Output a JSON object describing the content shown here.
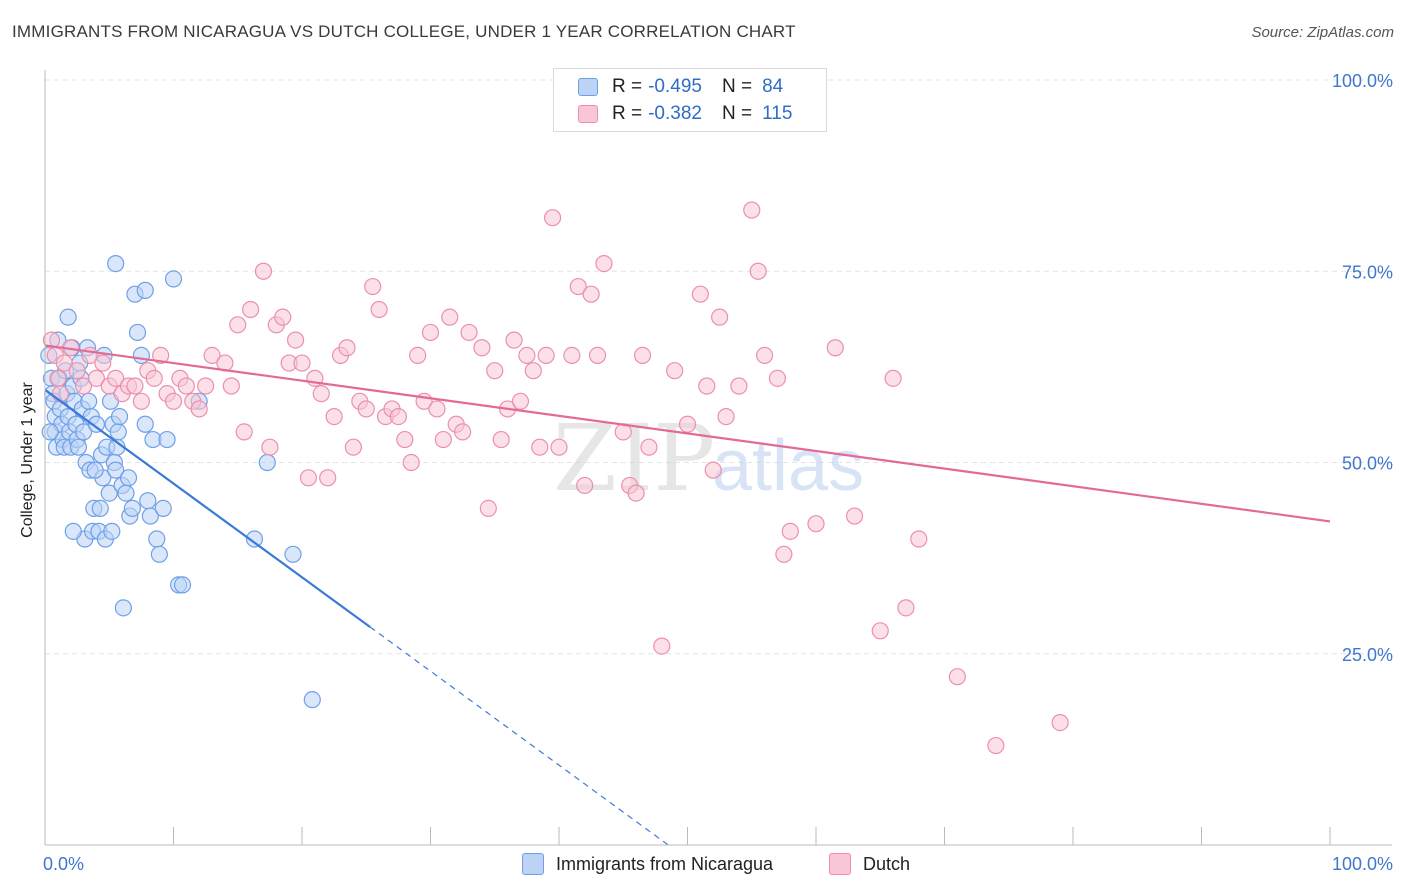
{
  "title": "IMMIGRANTS FROM NICARAGUA VS DUTCH COLLEGE, UNDER 1 YEAR CORRELATION CHART",
  "source": "Source: ZipAtlas.com",
  "watermark": {
    "zip": "ZIP",
    "atlas": "atlas"
  },
  "stats": [
    {
      "r_label": "R = ",
      "r_value": "-0.495",
      "n_label": "N = ",
      "n_value": "84",
      "color": "#6ea0e8",
      "fill": "#bcd3f5"
    },
    {
      "r_label": "R = ",
      "r_value": "-0.382",
      "n_label": "N = ",
      "n_value": "115",
      "color": "#ec8fae",
      "fill": "#f8c6d6"
    }
  ],
  "legend": [
    {
      "label": "Immigrants from Nicaragua",
      "color": "#6ea0e8",
      "fill": "#bcd3f5"
    },
    {
      "label": "Dutch",
      "color": "#ec8fae",
      "fill": "#f8c6d6"
    }
  ],
  "chart_data": {
    "type": "scatter",
    "title": "IMMIGRANTS FROM NICARAGUA VS DUTCH COLLEGE, UNDER 1 YEAR CORRELATION CHART",
    "xlabel": "",
    "ylabel": "College, Under 1 year",
    "xlim": [
      0,
      100
    ],
    "ylim": [
      0,
      100
    ],
    "x_tick_labels": [
      "0.0%",
      "100.0%"
    ],
    "y_tick_labels": [
      "25.0%",
      "50.0%",
      "75.0%",
      "100.0%"
    ],
    "y_ticks": [
      25,
      50,
      75,
      100
    ],
    "grid": true,
    "series": [
      {
        "name": "Immigrants from Nicaragua",
        "color": "#3a7ad8",
        "point_color": "#6ea0e8",
        "trend": {
          "x": [
            0,
            25.3
          ],
          "y": [
            59.5,
            28.5
          ],
          "extrapolated_to": [
            48.5,
            0
          ]
        },
        "points": [
          [
            0.3,
            64
          ],
          [
            0.5,
            61
          ],
          [
            0.6,
            59
          ],
          [
            0.7,
            58
          ],
          [
            0.8,
            56
          ],
          [
            0.8,
            54
          ],
          [
            0.9,
            52
          ],
          [
            1,
            66
          ],
          [
            1.1,
            61
          ],
          [
            1.2,
            57
          ],
          [
            1.3,
            55
          ],
          [
            1.4,
            53
          ],
          [
            1.5,
            52
          ],
          [
            1.6,
            62
          ],
          [
            1.7,
            59
          ],
          [
            1.8,
            56
          ],
          [
            1.9,
            54
          ],
          [
            2,
            52
          ],
          [
            2.1,
            65
          ],
          [
            2.2,
            60
          ],
          [
            2.3,
            58
          ],
          [
            2.4,
            55
          ],
          [
            2.5,
            53
          ],
          [
            2.6,
            52
          ],
          [
            2.7,
            63
          ],
          [
            2.8,
            61
          ],
          [
            2.9,
            57
          ],
          [
            3,
            54
          ],
          [
            3.1,
            40
          ],
          [
            3.2,
            50
          ],
          [
            3.3,
            65
          ],
          [
            3.4,
            58
          ],
          [
            3.5,
            49
          ],
          [
            3.6,
            56
          ],
          [
            3.7,
            41
          ],
          [
            3.8,
            44
          ],
          [
            4,
            55
          ],
          [
            4.2,
            41
          ],
          [
            4.3,
            44
          ],
          [
            4.4,
            51
          ],
          [
            4.5,
            48
          ],
          [
            4.6,
            64
          ],
          [
            4.7,
            40
          ],
          [
            4.8,
            52
          ],
          [
            5,
            46
          ],
          [
            5.1,
            58
          ],
          [
            5.2,
            41
          ],
          [
            5.3,
            55
          ],
          [
            5.4,
            50
          ],
          [
            5.5,
            49
          ],
          [
            5.6,
            52
          ],
          [
            5.7,
            54
          ],
          [
            5.8,
            56
          ],
          [
            6,
            47
          ],
          [
            6.1,
            31
          ],
          [
            6.3,
            46
          ],
          [
            6.5,
            48
          ],
          [
            6.6,
            43
          ],
          [
            7,
            72
          ],
          [
            7.2,
            67
          ],
          [
            7.5,
            64
          ],
          [
            7.8,
            55
          ],
          [
            8,
            45
          ],
          [
            8.2,
            43
          ],
          [
            8.4,
            53
          ],
          [
            8.7,
            40
          ],
          [
            8.9,
            38
          ],
          [
            9.2,
            44
          ],
          [
            9.5,
            53
          ],
          [
            10,
            74
          ],
          [
            10.4,
            34
          ],
          [
            10.7,
            34
          ],
          [
            12,
            58
          ],
          [
            16.3,
            40
          ],
          [
            17.3,
            50
          ],
          [
            19.3,
            38
          ],
          [
            20.8,
            19
          ],
          [
            5.5,
            76
          ],
          [
            7.8,
            72.5
          ],
          [
            1.8,
            69
          ],
          [
            0.4,
            54
          ],
          [
            2.2,
            41
          ],
          [
            3.9,
            49
          ],
          [
            6.8,
            44
          ]
        ]
      },
      {
        "name": "Dutch",
        "color": "#e26a95",
        "point_color": "#ec8fae",
        "trend": {
          "x": [
            0,
            100
          ],
          "y": [
            65.3,
            42.3
          ]
        },
        "points": [
          [
            0.5,
            66
          ],
          [
            0.8,
            64
          ],
          [
            1,
            61
          ],
          [
            1.2,
            59
          ],
          [
            1.5,
            63
          ],
          [
            2,
            65
          ],
          [
            2.5,
            62
          ],
          [
            3,
            60
          ],
          [
            3.5,
            64
          ],
          [
            4,
            61
          ],
          [
            4.5,
            63
          ],
          [
            5,
            60
          ],
          [
            5.5,
            61
          ],
          [
            6,
            59
          ],
          [
            6.5,
            60
          ],
          [
            7,
            60
          ],
          [
            7.5,
            58
          ],
          [
            8,
            62
          ],
          [
            8.5,
            61
          ],
          [
            9,
            64
          ],
          [
            9.5,
            59
          ],
          [
            10,
            58
          ],
          [
            10.5,
            61
          ],
          [
            11,
            60
          ],
          [
            11.5,
            58
          ],
          [
            12,
            57
          ],
          [
            12.5,
            60
          ],
          [
            13,
            64
          ],
          [
            14,
            63
          ],
          [
            14.5,
            60
          ],
          [
            15,
            68
          ],
          [
            15.5,
            54
          ],
          [
            16,
            70
          ],
          [
            17,
            75
          ],
          [
            17.5,
            52
          ],
          [
            18,
            68
          ],
          [
            18.5,
            69
          ],
          [
            19,
            63
          ],
          [
            19.5,
            66
          ],
          [
            20,
            63
          ],
          [
            20.5,
            48
          ],
          [
            21,
            61
          ],
          [
            21.5,
            59
          ],
          [
            22,
            48
          ],
          [
            22.5,
            56
          ],
          [
            23,
            64
          ],
          [
            23.5,
            65
          ],
          [
            24,
            52
          ],
          [
            24.5,
            58
          ],
          [
            25,
            57
          ],
          [
            25.5,
            73
          ],
          [
            26,
            70
          ],
          [
            26.5,
            56
          ],
          [
            27,
            57
          ],
          [
            27.5,
            56
          ],
          [
            28,
            53
          ],
          [
            28.5,
            50
          ],
          [
            29,
            64
          ],
          [
            29.5,
            58
          ],
          [
            30,
            67
          ],
          [
            30.5,
            57
          ],
          [
            31,
            53
          ],
          [
            31.5,
            69
          ],
          [
            32,
            55
          ],
          [
            32.5,
            54
          ],
          [
            33,
            67
          ],
          [
            34,
            65
          ],
          [
            34.5,
            44
          ],
          [
            35,
            62
          ],
          [
            35.5,
            53
          ],
          [
            36,
            57
          ],
          [
            36.5,
            66
          ],
          [
            37,
            58
          ],
          [
            37.5,
            64
          ],
          [
            38,
            62
          ],
          [
            38.5,
            52
          ],
          [
            39,
            64
          ],
          [
            39.5,
            82
          ],
          [
            40,
            52
          ],
          [
            41,
            64
          ],
          [
            41.5,
            73
          ],
          [
            42,
            47
          ],
          [
            42.5,
            72
          ],
          [
            43,
            64
          ],
          [
            43.5,
            76
          ],
          [
            45,
            54
          ],
          [
            45.5,
            47
          ],
          [
            46,
            46
          ],
          [
            46.5,
            64
          ],
          [
            47,
            52
          ],
          [
            48,
            26
          ],
          [
            49,
            62
          ],
          [
            50,
            55
          ],
          [
            51,
            72
          ],
          [
            51.5,
            60
          ],
          [
            52,
            49
          ],
          [
            52.5,
            69
          ],
          [
            53,
            56
          ],
          [
            54,
            60
          ],
          [
            55,
            83
          ],
          [
            55.5,
            75
          ],
          [
            56,
            64
          ],
          [
            57,
            61
          ],
          [
            57.5,
            38
          ],
          [
            58,
            41
          ],
          [
            60,
            42
          ],
          [
            61.5,
            65
          ],
          [
            63,
            43
          ],
          [
            65,
            28
          ],
          [
            66,
            61
          ],
          [
            67,
            31
          ],
          [
            68,
            40
          ],
          [
            71,
            22
          ],
          [
            74,
            13
          ],
          [
            79,
            16
          ]
        ]
      }
    ]
  }
}
